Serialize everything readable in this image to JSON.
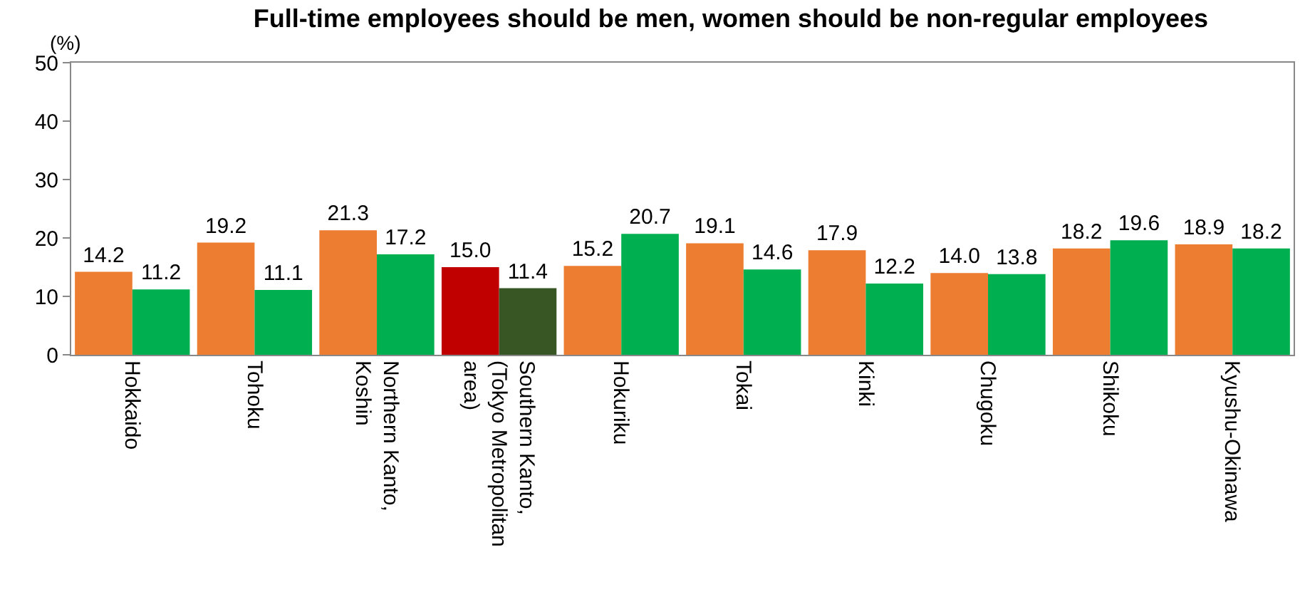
{
  "chart_data": {
    "type": "bar",
    "title": "Full-time employees should be men, women should be non-regular employees",
    "ylabel": "(%)",
    "categories": [
      "Hokkaido",
      "Tohoku",
      "Northern Kanto, Koshin",
      "Southern Kanto, (Tokyo Metropolitan area)",
      "Hokuriku",
      "Tokai",
      "Kinki",
      "Chugoku",
      "Shikoku",
      "Kyushu-Okinawa"
    ],
    "series": [
      {
        "colors": [
          "#ed7d31",
          "#ed7d31",
          "#ed7d31",
          "#c00000",
          "#ed7d31",
          "#ed7d31",
          "#ed7d31",
          "#ed7d31",
          "#ed7d31",
          "#ed7d31"
        ],
        "values": [
          14.2,
          19.2,
          21.3,
          15.0,
          15.2,
          19.1,
          17.9,
          14.0,
          18.2,
          18.9
        ],
        "value_labels": [
          "14.2",
          "19.2",
          "21.3",
          "15.0",
          "15.2",
          "19.1",
          "17.9",
          "14.0",
          "18.2",
          "18.9"
        ]
      },
      {
        "colors": [
          "#00b050",
          "#00b050",
          "#00b050",
          "#375623",
          "#00b050",
          "#00b050",
          "#00b050",
          "#00b050",
          "#00b050",
          "#00b050"
        ],
        "values": [
          11.2,
          11.1,
          17.2,
          11.4,
          20.7,
          14.6,
          12.2,
          13.8,
          19.6,
          18.2
        ],
        "value_labels": [
          "11.2",
          "11.1",
          "17.2",
          "11.4",
          "20.7",
          "14.6",
          "12.2",
          "13.8",
          "19.6",
          "18.2"
        ]
      }
    ],
    "ylim": [
      0,
      50
    ],
    "yticks": [
      0,
      10,
      20,
      30,
      40,
      50
    ],
    "grid": false
  }
}
